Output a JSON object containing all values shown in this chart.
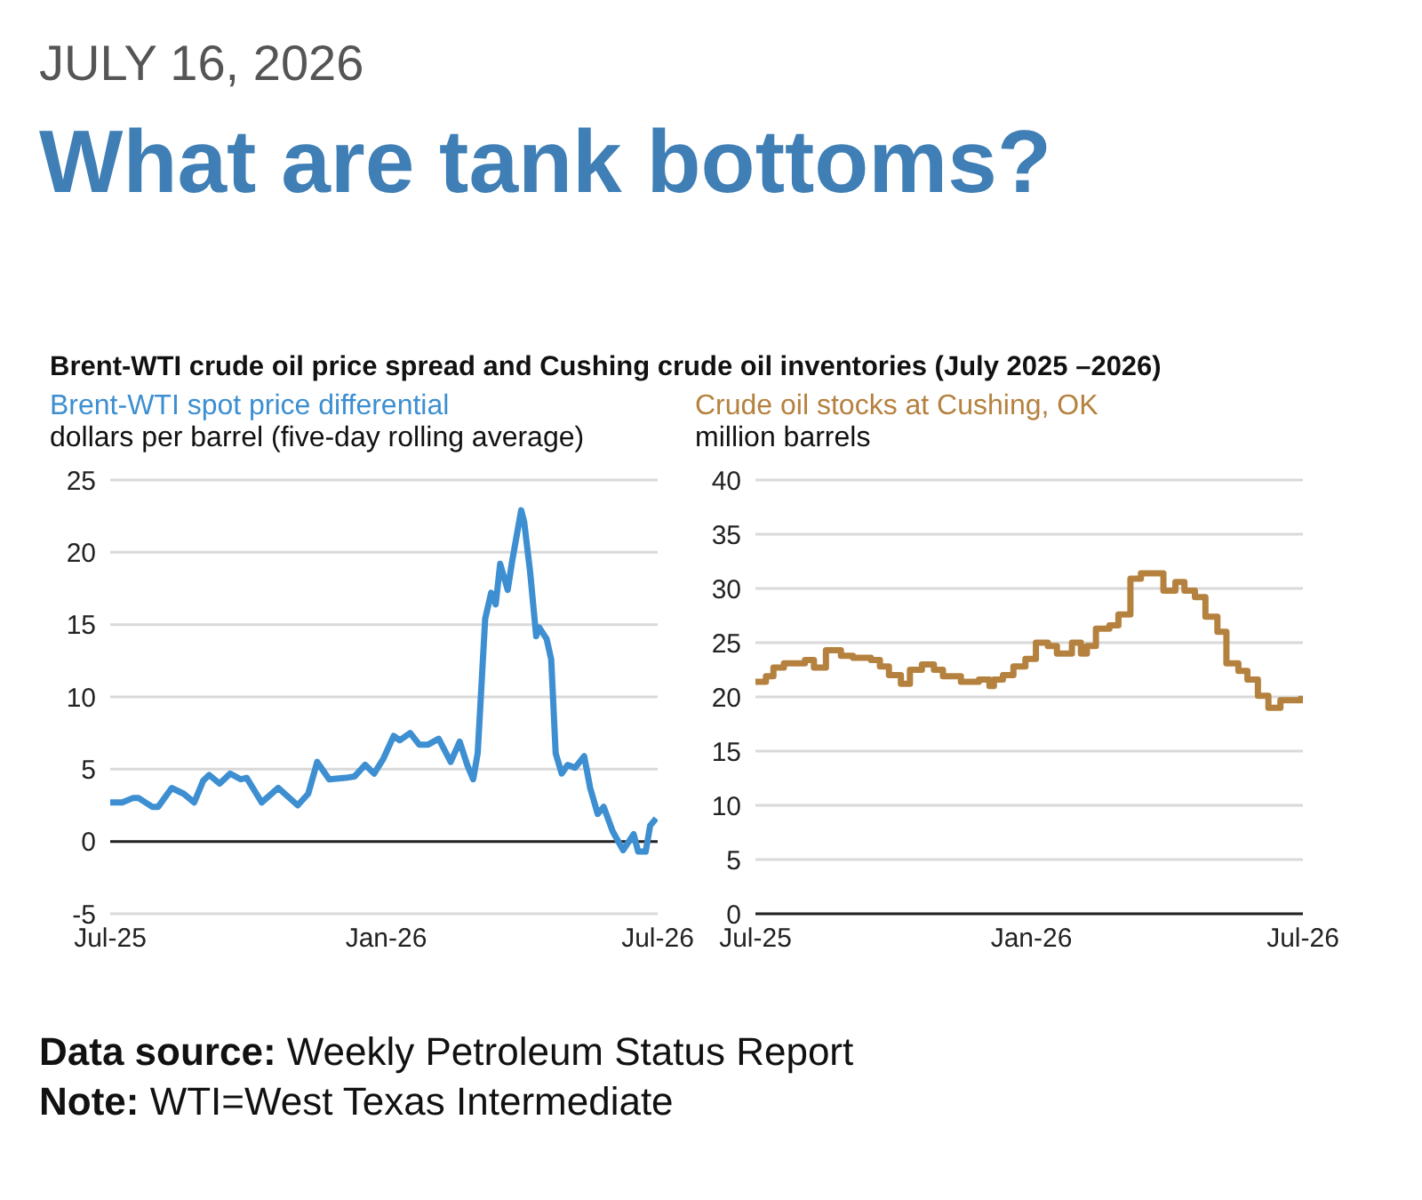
{
  "chart_data": [
    {
      "type": "line",
      "title": "What are tank bottoms?",
      "subtitle": "Brent-WTI crude oil price spread and Cushing crude oil inventories (July 2025 –2026)",
      "ylabel": "dollars per barrel (five-day rolling average)",
      "annotations": [
        "JULY 16, 2026",
        "Data source: Weekly Petroleum Status Report",
        "Note: WTI=West Texas Intermediate"
      ],
      "x": [
        "2025-07-01",
        "2025-07-09",
        "2025-07-16",
        "2025-07-20",
        "2025-07-29",
        "2025-08-02",
        "2025-08-11",
        "2025-08-19",
        "2025-08-26",
        "2025-09-01",
        "2025-09-05",
        "2025-09-12",
        "2025-09-19",
        "2025-09-26",
        "2025-09-30",
        "2025-10-10",
        "2025-10-21",
        "2025-11-03",
        "2025-11-10",
        "2025-11-16",
        "2025-11-24",
        "2025-12-05",
        "2025-12-11",
        "2025-12-18",
        "2025-12-24",
        "2025-12-30",
        "2026-01-06",
        "2026-01-10",
        "2026-01-17",
        "2026-01-23",
        "2026-01-29",
        "2026-02-05",
        "2026-02-13",
        "2026-02-19",
        "2026-02-24",
        "2026-02-28",
        "2026-03-03",
        "2026-03-08",
        "2026-03-12",
        "2026-03-15",
        "2026-03-18",
        "2026-03-23",
        "2026-03-26",
        "2026-04-01",
        "2026-04-03",
        "2026-04-07",
        "2026-04-11",
        "2026-04-13",
        "2026-04-18",
        "2026-04-21",
        "2026-04-24",
        "2026-04-28",
        "2026-05-02",
        "2026-05-07",
        "2026-05-13",
        "2026-05-17",
        "2026-05-22",
        "2026-05-26",
        "2026-06-01",
        "2026-06-08",
        "2026-06-15",
        "2026-06-18",
        "2026-06-23",
        "2026-06-26",
        "2026-06-30"
      ],
      "series": [
        {
          "name": "Brent-WTI spot price differential",
          "color": "#3d8fd1",
          "values": [
            2.7,
            2.7,
            3.0,
            3.0,
            2.4,
            2.4,
            3.7,
            3.3,
            2.7,
            4.2,
            4.6,
            4.0,
            4.7,
            4.3,
            4.4,
            2.7,
            3.7,
            2.5,
            3.3,
            5.5,
            4.3,
            4.4,
            4.5,
            5.3,
            4.7,
            5.7,
            7.3,
            7.0,
            7.5,
            6.7,
            6.7,
            7.1,
            5.5,
            6.9,
            5.3,
            4.3,
            6.1,
            15.4,
            17.2,
            16.4,
            19.2,
            17.4,
            19.4,
            22.9,
            22.1,
            18.6,
            14.2,
            14.8,
            14.0,
            12.6,
            6.1,
            4.7,
            5.3,
            5.1,
            5.9,
            3.7,
            1.9,
            2.4,
            0.7,
            -0.6,
            0.5,
            -0.7,
            -0.7,
            1.1,
            1.6
          ]
        }
      ],
      "xlim": [
        "2025-07-01",
        "2026-07-01"
      ],
      "xticks": [
        {
          "value": "2025-07-01",
          "label": "Jul-25"
        },
        {
          "value": "2026-01-01",
          "label": "Jan-26"
        },
        {
          "value": "2026-07-01",
          "label": "Jul-26"
        }
      ],
      "ylim": [
        -5,
        25
      ],
      "yticks": [
        -5,
        0,
        5,
        10,
        15,
        20,
        25
      ],
      "ref_lines": [
        {
          "axis": "y",
          "value": 0,
          "color": "#222222"
        }
      ],
      "grid": "y",
      "legend": false,
      "marker": "none",
      "line_style": "solid"
    },
    {
      "type": "step",
      "ylabel": "million barrels",
      "x": [
        "2025-07-01",
        "2025-07-08",
        "2025-07-13",
        "2025-07-20",
        "2025-08-03",
        "2025-08-09",
        "2025-08-17",
        "2025-08-27",
        "2025-09-04",
        "2025-09-16",
        "2025-09-22",
        "2025-09-28",
        "2025-10-06",
        "2025-10-12",
        "2025-10-20",
        "2025-10-28",
        "2025-11-03",
        "2025-11-15",
        "2025-11-27",
        "2025-12-04",
        "2025-12-07",
        "2025-12-13",
        "2025-12-20",
        "2025-12-28",
        "2026-01-04",
        "2026-01-12",
        "2026-01-18",
        "2026-01-28",
        "2026-02-03",
        "2026-02-07",
        "2026-02-13",
        "2026-02-22",
        "2026-02-28",
        "2026-03-08",
        "2026-03-15",
        "2026-03-30",
        "2026-04-07",
        "2026-04-13",
        "2026-04-20",
        "2026-04-27",
        "2026-05-05",
        "2026-05-11",
        "2026-05-19",
        "2026-05-25",
        "2026-06-01",
        "2026-06-08",
        "2026-06-16",
        "2026-06-30"
      ],
      "series": [
        {
          "name": "Crude oil stocks at Cushing, OK",
          "color": "#b5813f",
          "values": [
            21.4,
            21.9,
            22.7,
            23.1,
            23.4,
            22.7,
            24.3,
            23.8,
            23.6,
            23.4,
            22.8,
            22.0,
            21.2,
            22.5,
            23.0,
            22.5,
            21.9,
            21.4,
            21.6,
            21.0,
            21.6,
            22.0,
            22.8,
            23.5,
            25.0,
            24.7,
            24.0,
            25.0,
            24.0,
            24.7,
            26.3,
            26.6,
            27.6,
            30.9,
            31.4,
            29.8,
            30.6,
            29.8,
            29.2,
            27.4,
            26.0,
            23.1,
            22.4,
            21.6,
            20.1,
            19.0,
            19.7,
            20.1
          ]
        }
      ],
      "xlim": [
        "2025-07-01",
        "2026-07-01"
      ],
      "xticks": [
        {
          "value": "2025-07-01",
          "label": "Jul-25"
        },
        {
          "value": "2026-01-01",
          "label": "Jan-26"
        },
        {
          "value": "2026-07-01",
          "label": "Jul-26"
        }
      ],
      "ylim": [
        0,
        40
      ],
      "yticks": [
        0,
        5,
        10,
        15,
        20,
        25,
        30,
        35,
        40
      ],
      "grid": "y",
      "legend": false,
      "marker": "none",
      "line_style": "solid"
    }
  ]
}
